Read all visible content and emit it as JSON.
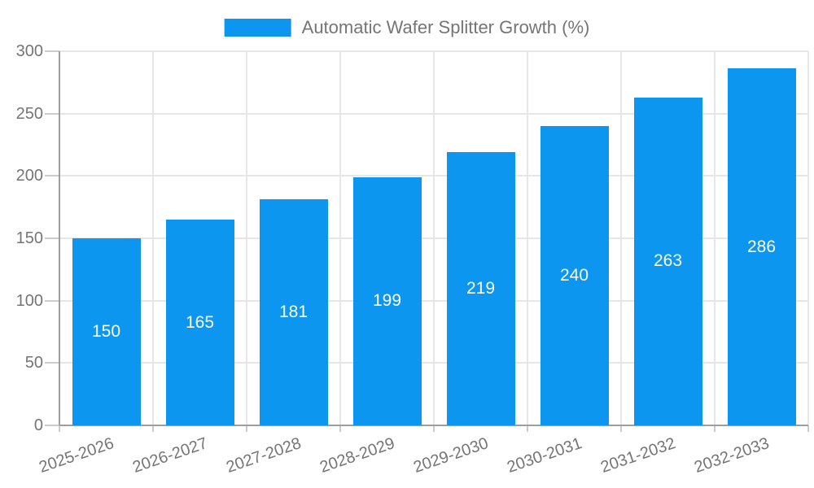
{
  "legend": {
    "label": "Automatic Wafer Splitter Growth (%)"
  },
  "chart_data": {
    "type": "bar",
    "title": "Automatic Wafer Splitter Growth (%)",
    "categories": [
      "2025-2026",
      "2026-2027",
      "2027-2028",
      "2028-2029",
      "2029-2030",
      "2030-2031",
      "2031-2032",
      "2032-2033"
    ],
    "series": [
      {
        "name": "Automatic Wafer Splitter Growth (%)",
        "values": [
          150,
          165,
          181,
          199,
          219,
          240,
          263,
          286
        ]
      }
    ],
    "xlabel": "",
    "ylabel": "",
    "ylim": [
      0,
      300
    ],
    "yticks": [
      0,
      50,
      100,
      150,
      200,
      250,
      300
    ],
    "grid": true,
    "legend_position": "top-center",
    "bar_label_position": "inside-center",
    "x_tick_rotation_deg": -19,
    "colors": {
      "bar": "#0d96f0",
      "axis_text": "#757575",
      "bar_label_text": "#ffffff",
      "gridline": "#e6e6e6",
      "tick": "#cccccc",
      "axis_line": "#9e9e9e",
      "background": "#ffffff"
    }
  }
}
